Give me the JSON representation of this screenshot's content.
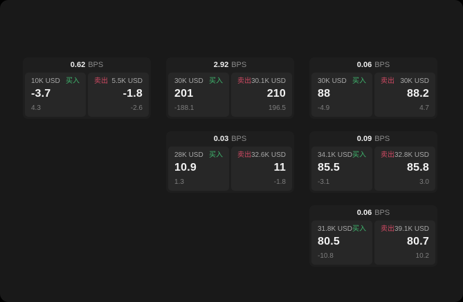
{
  "labels": {
    "bps_unit": "BPS",
    "buy": "买入",
    "sell": "卖出"
  },
  "colors": {
    "window_bg": "#191919",
    "card_bg": "#1e1e1e",
    "panel_bg": "#272727",
    "buy_accent": "#3fb56d",
    "sell_accent": "#cf4a63",
    "primary_text": "#f3f3f3",
    "muted_text": "#8b8b8b"
  },
  "cards": [
    {
      "bps": "0.62",
      "buy": {
        "amount": "10K USD",
        "value": "-3.7",
        "sub": "4.3"
      },
      "sell": {
        "amount": "5.5K USD",
        "value": "-1.8",
        "sub": "-2.6"
      }
    },
    {
      "bps": "2.92",
      "buy": {
        "amount": "30K USD",
        "value": "201",
        "sub": "-188.1"
      },
      "sell": {
        "amount": "30.1K USD",
        "value": "210",
        "sub": "196.5"
      }
    },
    {
      "bps": "0.06",
      "buy": {
        "amount": "30K USD",
        "value": "88",
        "sub": "-4.9"
      },
      "sell": {
        "amount": "30K USD",
        "value": "88.2",
        "sub": "4.7"
      }
    },
    {
      "bps": "0.03",
      "buy": {
        "amount": "28K USD",
        "value": "10.9",
        "sub": "1.3"
      },
      "sell": {
        "amount": "32.6K USD",
        "value": "11",
        "sub": "-1.8"
      }
    },
    {
      "bps": "0.09",
      "buy": {
        "amount": "34.1K USD",
        "value": "85.5",
        "sub": "-3.1"
      },
      "sell": {
        "amount": "32.8K USD",
        "value": "85.8",
        "sub": "3.0"
      }
    },
    {
      "bps": "0.06",
      "buy": {
        "amount": "31.8K USD",
        "value": "80.5",
        "sub": "-10.8"
      },
      "sell": {
        "amount": "39.1K USD",
        "value": "80.7",
        "sub": "10.2"
      }
    }
  ]
}
